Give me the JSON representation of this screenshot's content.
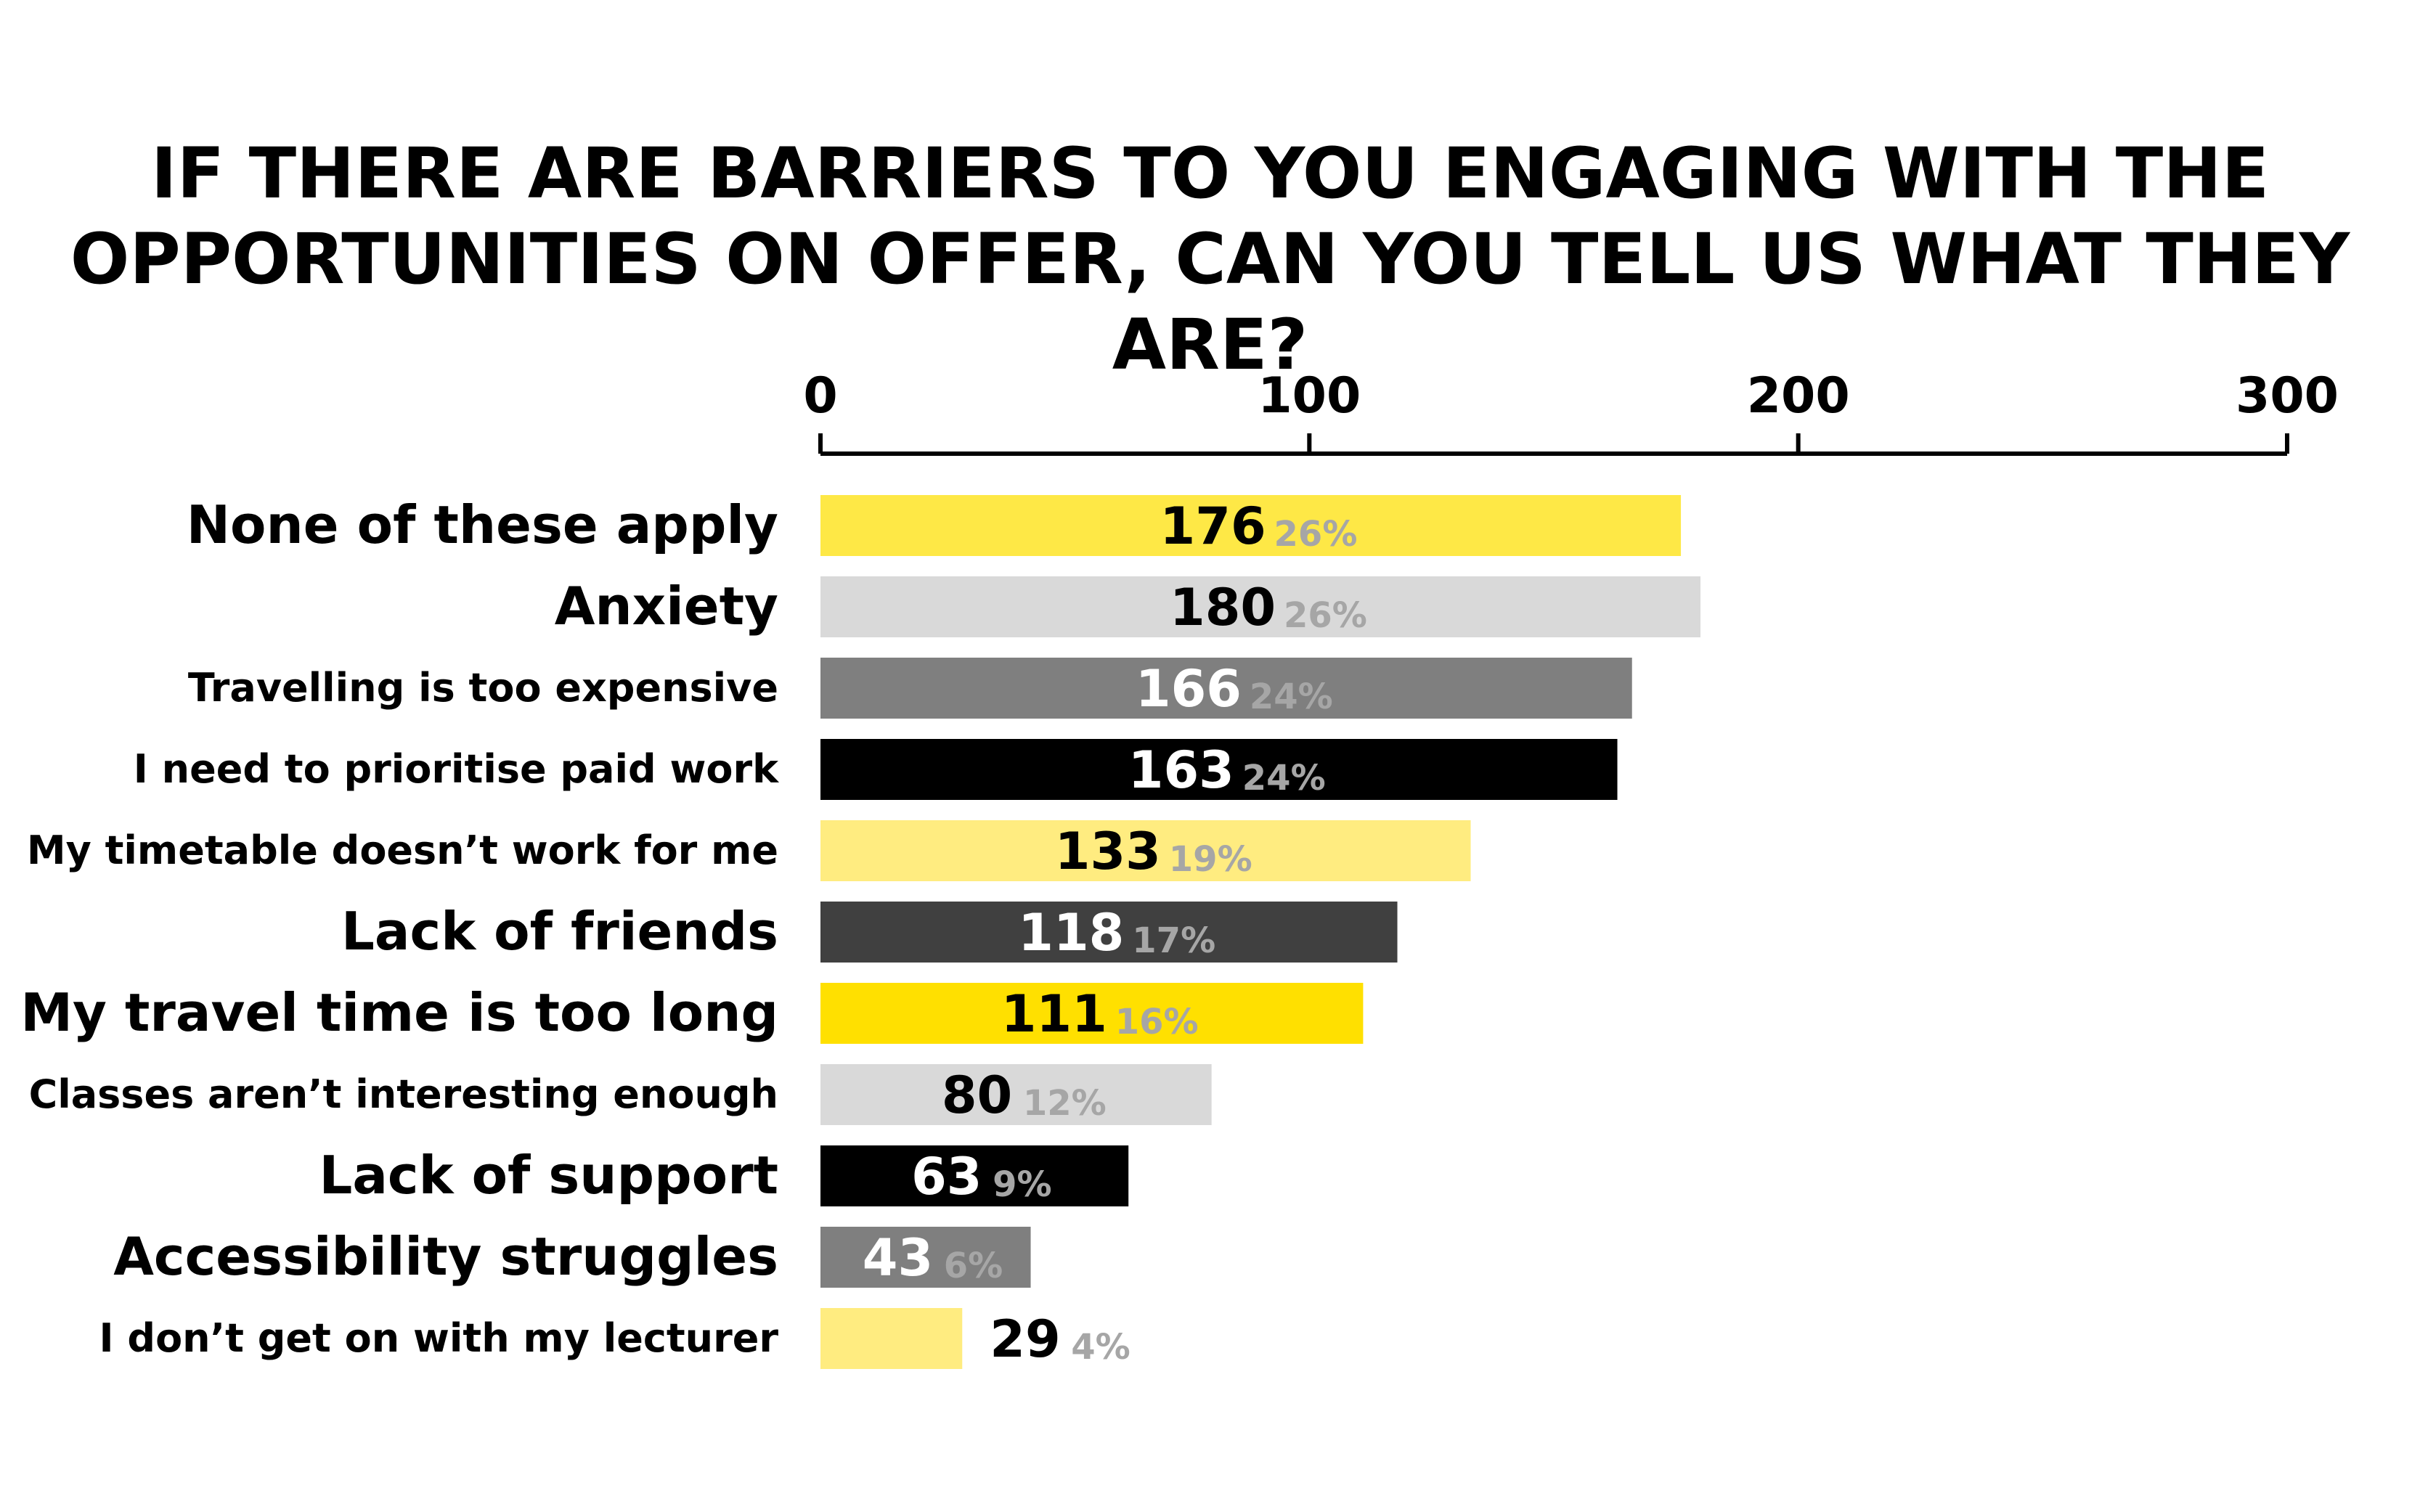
{
  "chart_data": {
    "type": "bar",
    "orientation": "horizontal",
    "title_lines": [
      "IF THERE ARE BARRIERS TO YOU ENGAGING WITH THE",
      "OPPORTUNITIES ON OFFER, CAN YOU TELL US WHAT THEY ARE?"
    ],
    "xlim": [
      0,
      300
    ],
    "ticks": [
      "0",
      "100",
      "200",
      "300"
    ],
    "tick_values": [
      0,
      100,
      200,
      300
    ],
    "axis_position": "top",
    "grid": false,
    "categories": [
      "None of these apply",
      "Anxiety",
      "Travelling is too expensive",
      "I need to prioritise paid work",
      "My timetable doesn’t work for me",
      "Lack of friends",
      "My travel time is too long",
      "Classes aren’t interesting enough",
      "Lack of support",
      "Accessibility struggles",
      "I don’t get on with my lecturer"
    ],
    "values": [
      176,
      180,
      166,
      163,
      133,
      118,
      111,
      80,
      63,
      43,
      29
    ],
    "percent_labels": [
      "26%",
      "26%",
      "24%",
      "24%",
      "19%",
      "17%",
      "16%",
      "12%",
      "9%",
      "6%",
      "4%"
    ],
    "bar_colors": [
      "#fee846",
      "#d9d9d9",
      "#7f7f7f",
      "#000000",
      "#ffec80",
      "#404040",
      "#ffe000",
      "#d9d9d9",
      "#000000",
      "#7f7f7f",
      "#ffec80"
    ],
    "value_label_colors": [
      "#000000",
      "#000000",
      "#ffffff",
      "#ffffff",
      "#000000",
      "#ffffff",
      "#000000",
      "#000000",
      "#ffffff",
      "#ffffff",
      "#000000"
    ],
    "label_sizes": [
      "large",
      "large",
      "small",
      "small",
      "small",
      "large",
      "large",
      "small",
      "large",
      "large",
      "small"
    ]
  }
}
